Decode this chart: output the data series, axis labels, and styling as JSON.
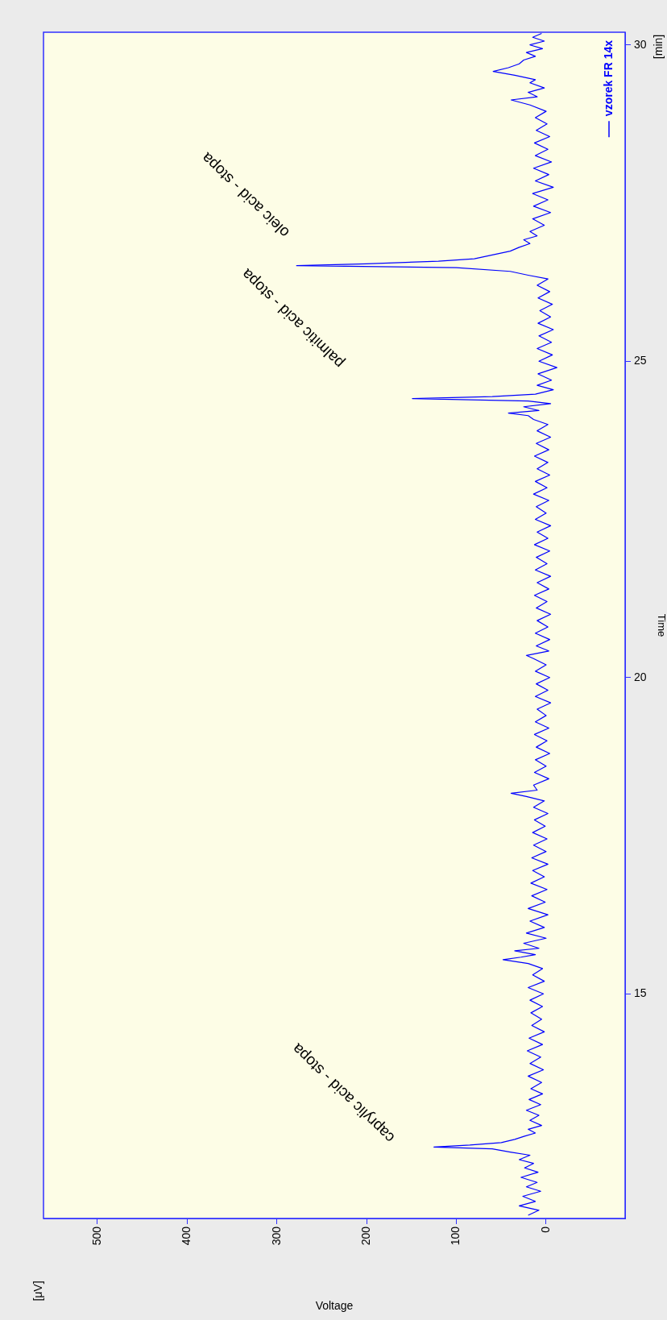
{
  "chart_data": {
    "type": "line",
    "xlabel": "Voltage",
    "ylabel": "Time",
    "annotations": [
      "[μV]",
      "[min]",
      "caprylic acid - stopa",
      "palmitic acid - stopa",
      "oleic acid - stopa"
    ],
    "xlim": [
      560,
      -88
    ],
    "xticks": [
      0,
      100,
      200,
      300,
      400,
      500
    ],
    "ylim": [
      11.45,
      30.2
    ],
    "yticks": [
      15,
      20,
      25,
      30
    ],
    "grid": false,
    "legend": "top right",
    "marker": "none",
    "line_style": "solid",
    "series": [
      {
        "name": "vzorek FR 14x",
        "color": "#0000ff",
        "values": [
          11.5,
          11.58,
          11.65,
          11.72,
          11.8,
          11.88,
          11.95,
          12.02,
          12.1,
          12.18,
          12.25,
          12.32,
          12.38,
          12.45,
          12.5,
          12.55,
          12.58,
          12.61,
          12.65,
          12.7,
          12.75,
          12.8,
          12.86,
          12.92,
          13,
          13.08,
          13.16,
          13.25,
          13.33,
          13.42,
          13.5,
          13.6,
          13.7,
          13.8,
          13.9,
          14,
          14.1,
          14.2,
          14.3,
          14.4,
          14.5,
          14.6,
          14.7,
          14.8,
          14.9,
          15,
          15.1,
          15.2,
          15.3,
          15.4,
          15.48,
          15.54,
          15.58,
          15.62,
          15.68,
          15.72,
          15.8,
          15.88,
          15.96,
          16.05,
          16.15,
          16.25,
          16.35,
          16.45,
          16.55,
          16.65,
          16.75,
          16.85,
          16.95,
          17.05,
          17.15,
          17.25,
          17.35,
          17.45,
          17.55,
          17.65,
          17.75,
          17.85,
          17.95,
          18.05,
          18.12,
          18.17,
          18.22,
          18.3,
          18.4,
          18.5,
          18.6,
          18.7,
          18.8,
          18.9,
          19,
          19.1,
          19.2,
          19.3,
          19.4,
          19.5,
          19.6,
          19.7,
          19.8,
          19.9,
          20,
          20.1,
          20.2,
          20.3,
          20.35,
          20.42,
          20.5,
          20.6,
          20.7,
          20.8,
          20.9,
          21,
          21.1,
          21.2,
          21.3,
          21.4,
          21.5,
          21.6,
          21.7,
          21.8,
          21.9,
          22,
          22.1,
          22.2,
          22.3,
          22.4,
          22.5,
          22.6,
          22.7,
          22.8,
          22.9,
          23,
          23.1,
          23.2,
          23.3,
          23.4,
          23.5,
          23.6,
          23.7,
          23.8,
          23.9,
          24,
          24.08,
          24.14,
          24.18,
          24.22,
          24.28,
          24.33,
          24.37,
          24.41,
          24.44,
          24.48,
          24.55,
          24.62,
          24.7,
          24.8,
          24.9,
          25,
          25.1,
          25.2,
          25.3,
          25.4,
          25.5,
          25.6,
          25.7,
          25.8,
          25.9,
          26,
          26.1,
          26.2,
          26.3,
          26.36,
          26.42,
          26.48,
          26.51,
          26.54,
          26.58,
          26.62,
          26.68,
          26.74,
          26.8,
          26.86,
          26.92,
          26.98,
          27.05,
          27.15,
          27.25,
          27.35,
          27.45,
          27.55,
          27.65,
          27.75,
          27.85,
          27.95,
          28.05,
          28.15,
          28.25,
          28.35,
          28.45,
          28.55,
          28.65,
          28.75,
          28.85,
          28.95,
          29.05,
          29.13,
          29.18,
          29.25,
          29.32,
          29.4,
          29.45,
          29.52,
          29.58,
          29.64,
          29.7,
          29.76,
          29.82,
          29.88,
          29.94,
          30,
          30.06,
          30.12,
          30.18
        ],
        "x": [
          20,
          8,
          30,
          12,
          26,
          6,
          22,
          10,
          28,
          9,
          24,
          14,
          30,
          18,
          40,
          60,
          125,
          85,
          50,
          35,
          24,
          12,
          20,
          5,
          18,
          8,
          22,
          6,
          19,
          4,
          17,
          5,
          20,
          3,
          18,
          6,
          21,
          4,
          19,
          2,
          16,
          5,
          17,
          4,
          18,
          3,
          20,
          2,
          15,
          4,
          20,
          48,
          28,
          12,
          35,
          8,
          25,
          0,
          22,
          2,
          18,
          -2,
          20,
          1,
          16,
          -1,
          17,
          2,
          15,
          -2,
          16,
          0,
          14,
          -1,
          15,
          1,
          13,
          -2,
          14,
          2,
          22,
          39,
          10,
          14,
          -3,
          13,
          0,
          12,
          -4,
          11,
          -1,
          13,
          -3,
          12,
          0,
          10,
          -5,
          12,
          -2,
          11,
          -4,
          12,
          0,
          14,
          22,
          -3,
          11,
          -4,
          12,
          -2,
          10,
          -5,
          11,
          -1,
          13,
          -3,
          10,
          -5,
          12,
          -1,
          11,
          -4,
          13,
          -2,
          10,
          -5,
          12,
          0,
          11,
          -3,
          14,
          -1,
          12,
          -4,
          10,
          -2,
          13,
          -3,
          11,
          -5,
          10,
          -2,
          14,
          20,
          42,
          8,
          25,
          -5,
          20,
          149,
          60,
          12,
          -8,
          10,
          -6,
          9,
          -12,
          8,
          -7,
          10,
          -6,
          8,
          -8,
          9,
          -5,
          7,
          -7,
          9,
          -4,
          10,
          -2,
          20,
          40,
          100,
          278,
          200,
          120,
          80,
          60,
          40,
          30,
          18,
          25,
          10,
          18,
          2,
          15,
          -5,
          14,
          -2,
          15,
          -8,
          12,
          -3,
          14,
          -6,
          12,
          -2,
          13,
          -4,
          11,
          -1,
          12,
          0,
          18,
          39,
          10,
          20,
          2,
          18,
          12,
          35,
          59,
          42,
          30,
          25,
          12,
          22,
          4,
          18,
          2,
          15,
          5
        ]
      }
    ]
  }
}
